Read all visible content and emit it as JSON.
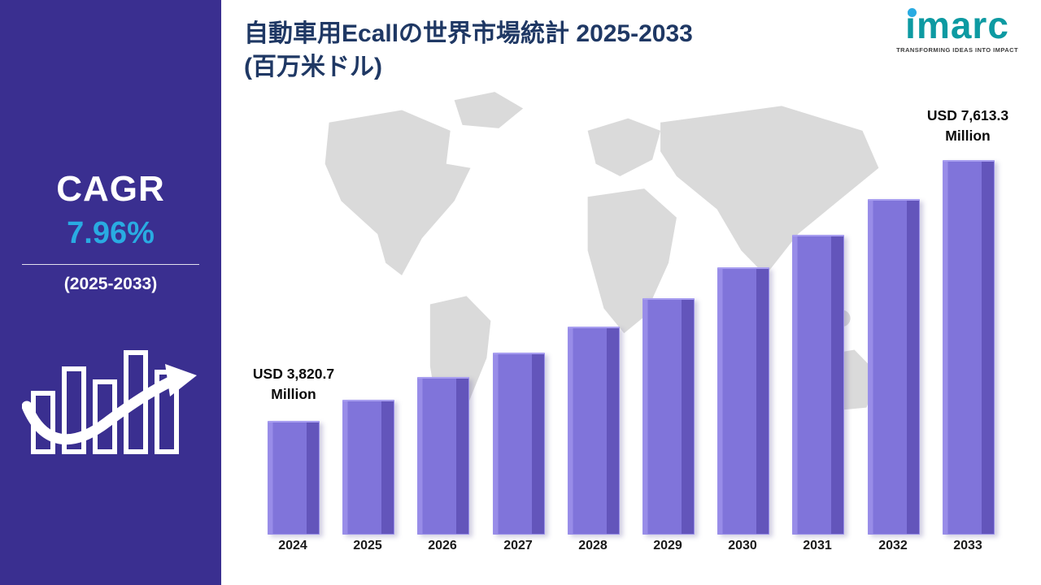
{
  "sidebar": {
    "cagr_label": "CAGR",
    "cagr_value": "7.96%",
    "cagr_period": "(2025-2033)"
  },
  "header": {
    "title_line1": "自動車用Ecallの世界市場統計 2025-2033",
    "title_line2": "(百万米ドル)"
  },
  "logo": {
    "brand": "imarc",
    "tagline": "TRANSFORMING IDEAS INTO IMPACT"
  },
  "annotations": {
    "start": {
      "value": "USD 3,820.7",
      "unit": "Million"
    },
    "end": {
      "value": "USD 7,613.3",
      "unit": "Million"
    }
  },
  "chart_data": {
    "type": "bar",
    "title": "自動車用Ecallの世界市場統計 2025-2033 (百万米ドル)",
    "categories": [
      "2024",
      "2025",
      "2026",
      "2027",
      "2028",
      "2029",
      "2030",
      "2031",
      "2032",
      "2033"
    ],
    "values": [
      3820.7,
      4124.8,
      4453.2,
      4807.6,
      5190.3,
      5603.4,
      6049.5,
      6531.0,
      7050.9,
      7613.3
    ],
    "xlabel": "",
    "ylabel": "USD Million",
    "ylim": [
      0,
      8000
    ],
    "grid": false,
    "legend": false,
    "annotations": [
      {
        "category": "2024",
        "text": "USD 3,820.7 Million"
      },
      {
        "category": "2033",
        "text": "USD 7,613.3 Million"
      }
    ]
  },
  "colors": {
    "sidebar_bg": "#3a2f90",
    "accent_cyan": "#29abe2",
    "title_navy": "#1f3864",
    "logo_teal": "#0d9aa2",
    "bar_light": "#988ce8",
    "bar_main": "#8074da",
    "bar_dark": "#6355bb",
    "map_gray": "#dadada"
  }
}
